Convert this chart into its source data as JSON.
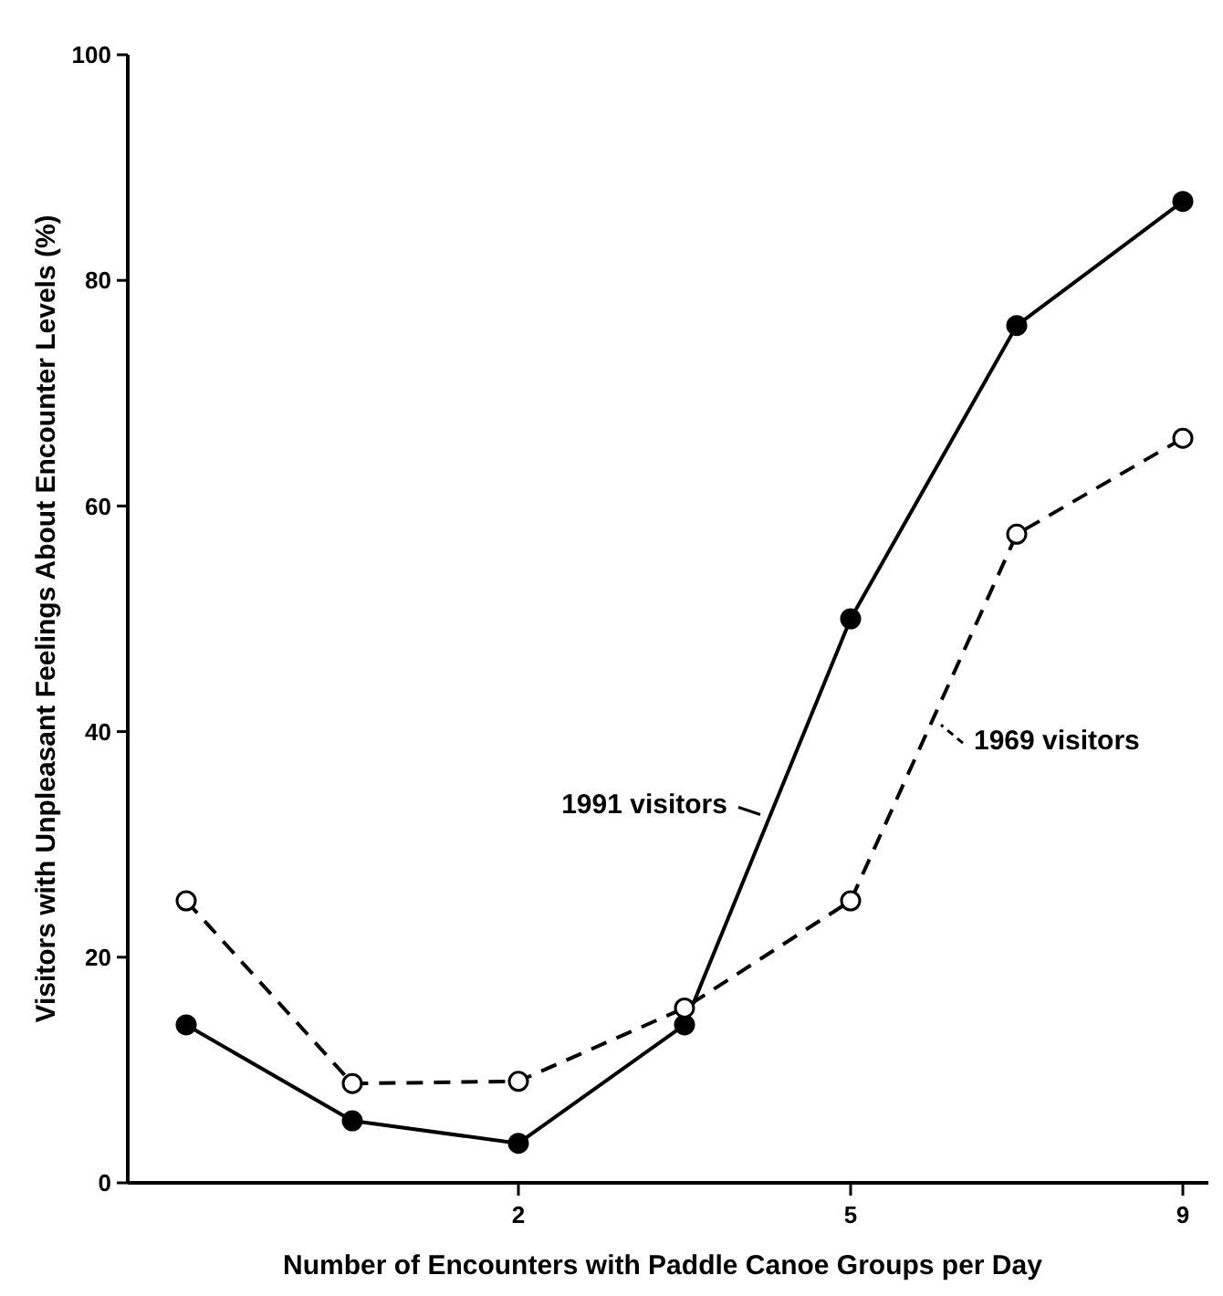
{
  "chart_data": {
    "type": "line",
    "xlabel": "Number of Encounters with Paddle Canoe Groups per Day",
    "ylabel": "Visitors with Unpleasant Feelings About Encounter Levels (%)",
    "categories": [
      null,
      null,
      "2",
      null,
      "5",
      null,
      "9"
    ],
    "series": [
      {
        "name": "1991 visitors",
        "color": "#000000",
        "line_style": "solid",
        "values": [
          14,
          5.5,
          3.5,
          14,
          50,
          76,
          87
        ]
      },
      {
        "name": "1969 visitors",
        "color": "#000000",
        "line_style": "dashed",
        "values": [
          25,
          8.8,
          9,
          15.5,
          25,
          57.5,
          66
        ]
      }
    ],
    "ylim": [
      0,
      100
    ],
    "yticks": [
      0,
      20,
      40,
      60,
      80,
      100
    ],
    "marker": "circle",
    "grid": false
  }
}
